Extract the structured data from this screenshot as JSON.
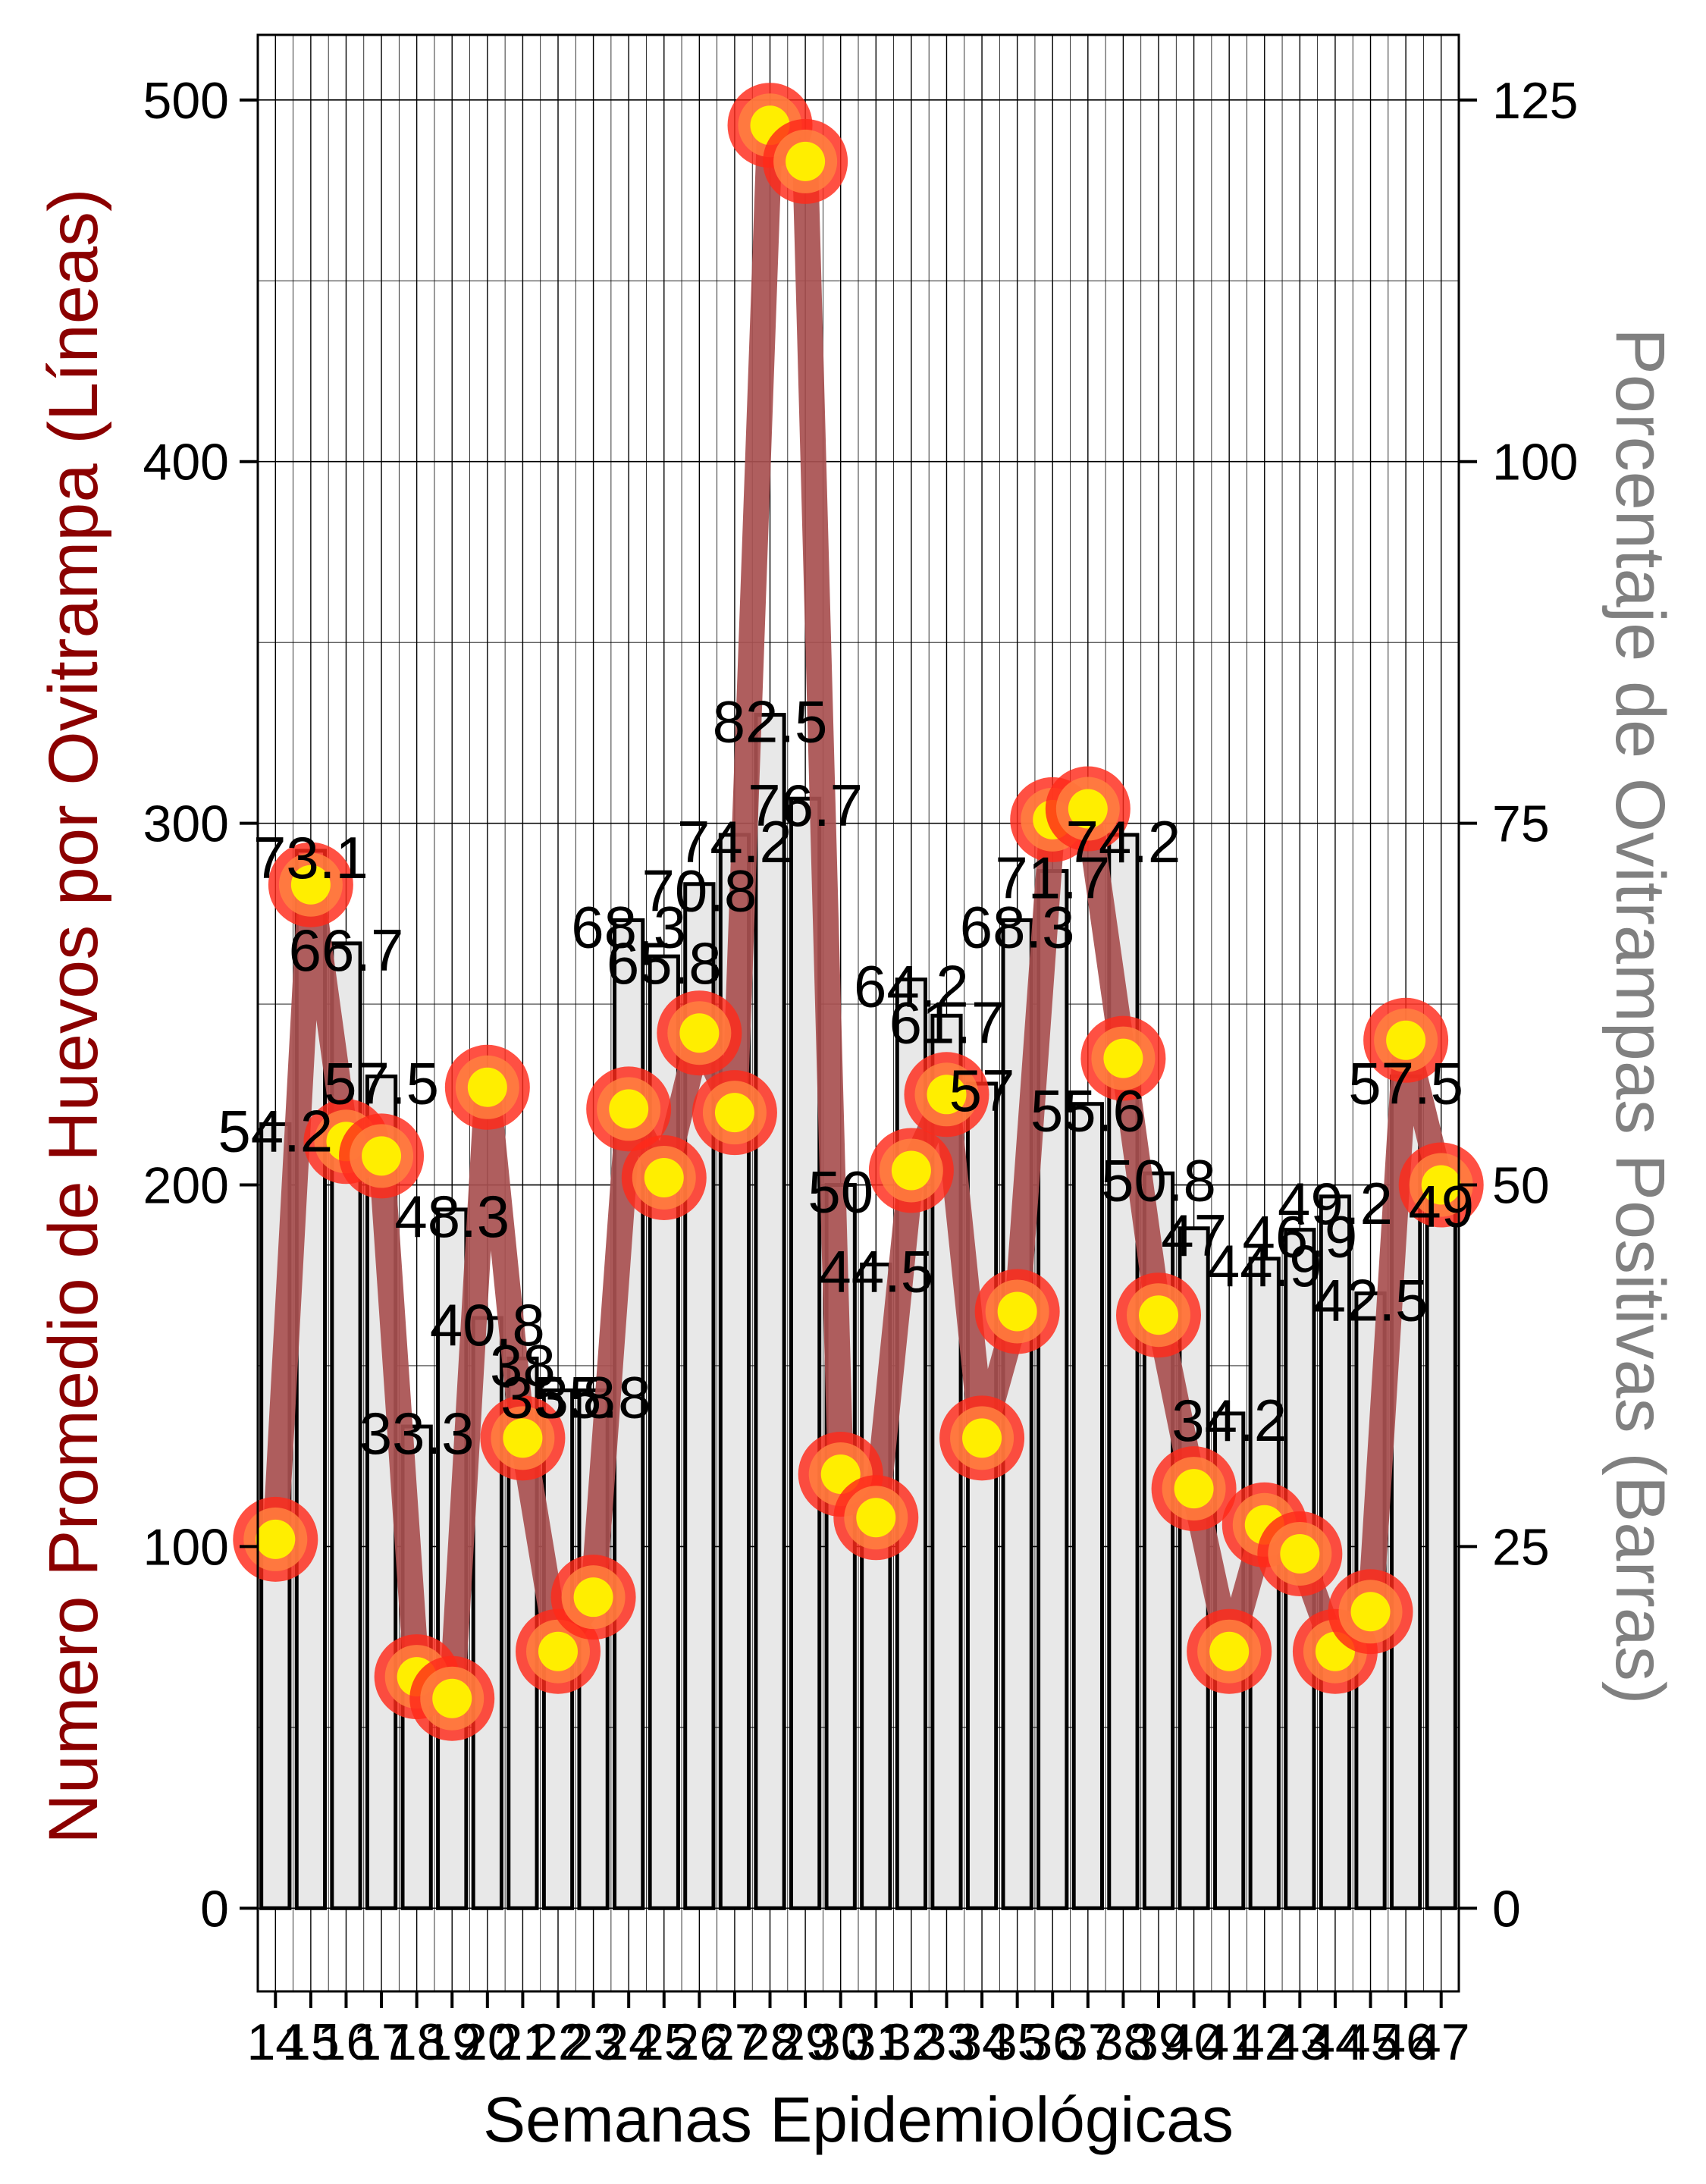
{
  "chart_data": {
    "type": "bar+line",
    "xlabel": "Semanas Epidemiológicas",
    "ylabel_left": "Numero Promedio de Huevos por Ovitrampa (Líneas)",
    "ylabel_right": "Porcentaje de Ovitrampas Positivas (Barras)",
    "categories": [
      "14",
      "15",
      "16",
      "17",
      "18",
      "19",
      "20",
      "21",
      "22",
      "23",
      "24",
      "25",
      "26",
      "27",
      "28",
      "29",
      "30",
      "31",
      "32",
      "33",
      "34",
      "35",
      "36",
      "37",
      "38",
      "39",
      "40",
      "41",
      "42",
      "43",
      "44",
      "45",
      "46",
      "47"
    ],
    "bar_series": {
      "name": "Porcentaje de Ovitrampas Positivas",
      "axis": "right",
      "values": [
        54.2,
        73.1,
        66.7,
        57.5,
        33.3,
        48.3,
        40.8,
        38,
        35.8,
        35.8,
        68.3,
        65.8,
        70.8,
        74.2,
        82.5,
        76.7,
        50,
        44.5,
        64.2,
        61.7,
        57,
        68.3,
        71.7,
        55.6,
        74.2,
        50.8,
        47,
        34.2,
        44.9,
        46.9,
        49.2,
        42.5,
        57.5,
        49
      ],
      "labels": [
        "54.2",
        "73.1",
        "66.7",
        "57.5",
        "33.3",
        "48.3",
        "40.8",
        "38",
        "35.8",
        "35.8",
        "68.3",
        "65.8",
        "70.8",
        "74.2",
        "82.5",
        "76.7",
        "50",
        "44.5",
        "64.2",
        "61.7",
        "57",
        "68.3",
        "71.7",
        "55.6",
        "74.2",
        "50.8",
        "47",
        "34.2",
        "44.9",
        "46.9",
        "49.2",
        "42.5",
        "57.5",
        "49"
      ]
    },
    "line_series": {
      "name": "Numero Promedio de Huevos por Ovitrampa",
      "axis": "left",
      "values": [
        102,
        283,
        212,
        208,
        64,
        58,
        227,
        130,
        71,
        86,
        221,
        202,
        242,
        220,
        493,
        483,
        120,
        108,
        204,
        225,
        130,
        165,
        301,
        304,
        235,
        164,
        116,
        71,
        106,
        98,
        71,
        82,
        240,
        200
      ]
    },
    "ylim_left": [
      -23,
      518
    ],
    "yticks_left": [
      0,
      100,
      200,
      300,
      400,
      500
    ],
    "ylim_right": [
      -5.75,
      129.5
    ],
    "yticks_right": [
      0,
      25,
      50,
      75,
      100,
      125
    ],
    "grid": true,
    "colors": {
      "bar_fill": "#e8e8e8",
      "bar_edge": "#000000",
      "line": "#a85050",
      "marker_outer": "#ff2a1a",
      "marker_mid": "#ff8040",
      "marker_inner": "#ffee00",
      "left_label": "#8b0000",
      "right_label": "#808080",
      "grid": "#000000"
    }
  }
}
